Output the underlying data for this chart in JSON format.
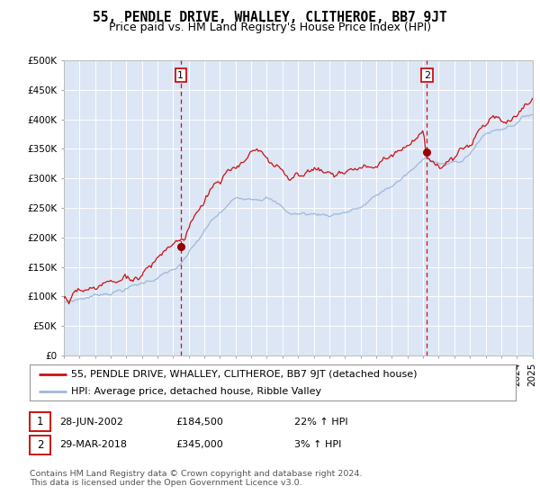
{
  "title": "55, PENDLE DRIVE, WHALLEY, CLITHEROE, BB7 9JT",
  "subtitle": "Price paid vs. HM Land Registry's House Price Index (HPI)",
  "background_color": "#ffffff",
  "plot_bg_color": "#dce6f5",
  "grid_color": "#ffffff",
  "ylim": [
    0,
    500000
  ],
  "yticks": [
    0,
    50000,
    100000,
    150000,
    200000,
    250000,
    300000,
    350000,
    400000,
    450000,
    500000
  ],
  "ytick_labels": [
    "£0",
    "£50K",
    "£100K",
    "£150K",
    "£200K",
    "£250K",
    "£300K",
    "£350K",
    "£400K",
    "£450K",
    "£500K"
  ],
  "xmin_year": 1995,
  "xmax_year": 2025,
  "xticks": [
    1995,
    1996,
    1997,
    1998,
    1999,
    2000,
    2001,
    2002,
    2003,
    2004,
    2005,
    2006,
    2007,
    2008,
    2009,
    2010,
    2011,
    2012,
    2013,
    2014,
    2015,
    2016,
    2017,
    2018,
    2019,
    2020,
    2021,
    2022,
    2023,
    2024,
    2025
  ],
  "hpi_color": "#a0b8d8",
  "price_color": "#cc1111",
  "marker1_date": 2002.49,
  "marker1_price": 184500,
  "marker1_label": "1",
  "marker2_date": 2018.24,
  "marker2_price": 345000,
  "marker2_label": "2",
  "legend_line1": "55, PENDLE DRIVE, WHALLEY, CLITHEROE, BB7 9JT (detached house)",
  "legend_line2": "HPI: Average price, detached house, Ribble Valley",
  "table_row1": [
    "1",
    "28-JUN-2002",
    "£184,500",
    "22% ↑ HPI"
  ],
  "table_row2": [
    "2",
    "29-MAR-2018",
    "£345,000",
    "3% ↑ HPI"
  ],
  "footer": "Contains HM Land Registry data © Crown copyright and database right 2024.\nThis data is licensed under the Open Government Licence v3.0.",
  "title_fontsize": 10.5,
  "subtitle_fontsize": 9,
  "tick_fontsize": 7.5,
  "legend_fontsize": 8
}
